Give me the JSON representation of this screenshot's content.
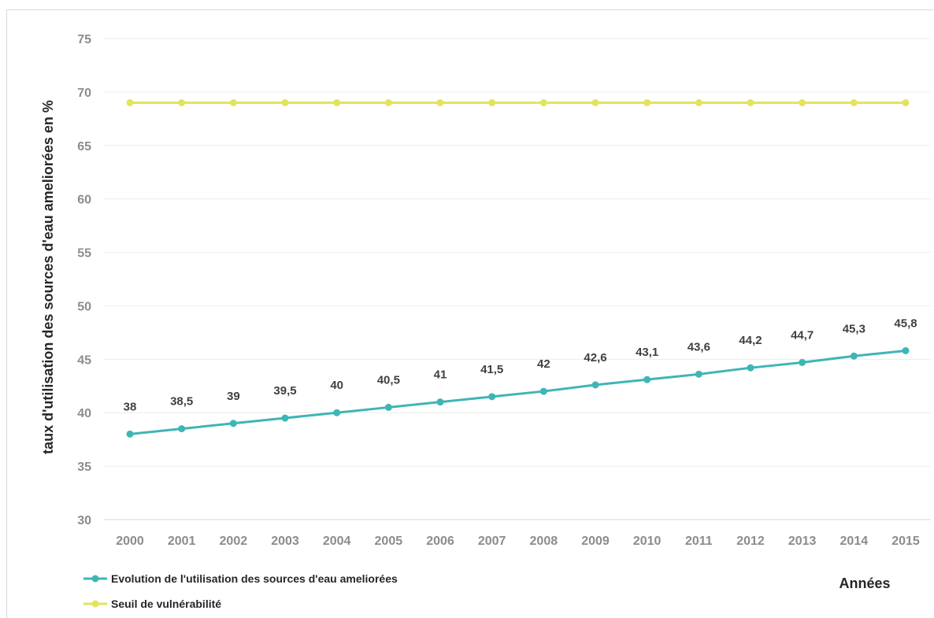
{
  "chart_data": {
    "type": "line",
    "title": "",
    "ylabel": "taux d'utilisation des sources d'eau ameliorées en %",
    "xlabel": "Années",
    "ylim": [
      30,
      75
    ],
    "yticks": [
      30,
      35,
      40,
      45,
      50,
      55,
      60,
      65,
      70,
      75
    ],
    "grid": "horizontal",
    "legend_position": "bottom-left",
    "categories": [
      "2000",
      "2001",
      "2002",
      "2003",
      "2004",
      "2005",
      "2006",
      "2007",
      "2008",
      "2009",
      "2010",
      "2011",
      "2012",
      "2013",
      "2014",
      "2015"
    ],
    "series": [
      {
        "name": "Evolution de l'utilisation des sources d'eau ameliorées",
        "color": "#3fb5b5",
        "values": [
          38,
          38.5,
          39,
          39.5,
          40,
          40.5,
          41,
          41.5,
          42,
          42.6,
          43.1,
          43.6,
          44.2,
          44.7,
          45.3,
          45.8
        ],
        "labels": [
          "38",
          "38,5",
          "39",
          "39,5",
          "40",
          "40,5",
          "41",
          "41,5",
          "42",
          "42,6",
          "43,1",
          "43,6",
          "44,2",
          "44,7",
          "45,3",
          "45,8"
        ],
        "show_labels": true
      },
      {
        "name": "Seuil de vulnérabilité",
        "color": "#e3e35e",
        "values": [
          69,
          69,
          69,
          69,
          69,
          69,
          69,
          69,
          69,
          69,
          69,
          69,
          69,
          69,
          69,
          69
        ],
        "show_labels": false
      }
    ]
  }
}
